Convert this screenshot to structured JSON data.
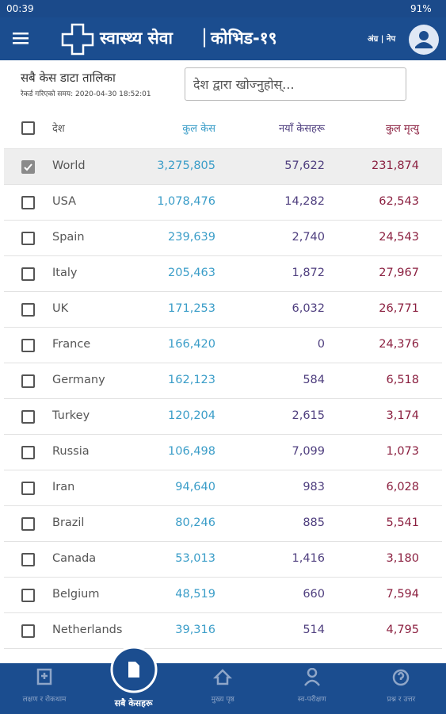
{
  "status_bar": {
    "time": "00:39",
    "battery": "91%"
  },
  "header": {
    "title": "स्वास्थ्य सेवा",
    "subtitle": "कोभिड-१९",
    "language": "अंग्र | नेप"
  },
  "panel": {
    "title": "सबै केस डाटा तालिका",
    "updated": "रेकर्ड गरिएको समय: 2020-04-30 18:52:01",
    "search_placeholder": "देश द्वारा खोज्नुहोस्..."
  },
  "table": {
    "columns": [
      "देश",
      "कुल केस",
      "नयाँ केसहरू",
      "कुल मृत्यु"
    ],
    "rows": [
      {
        "cells": [
          "World",
          "3,275,805",
          "57,622",
          "231,874"
        ],
        "checked": true
      },
      {
        "cells": [
          "USA",
          "1,078,476",
          "14,282",
          "62,543"
        ],
        "checked": false
      },
      {
        "cells": [
          "Spain",
          "239,639",
          "2,740",
          "24,543"
        ],
        "checked": false
      },
      {
        "cells": [
          "Italy",
          "205,463",
          "1,872",
          "27,967"
        ],
        "checked": false
      },
      {
        "cells": [
          "UK",
          "171,253",
          "6,032",
          "26,771"
        ],
        "checked": false
      },
      {
        "cells": [
          "France",
          "166,420",
          "0",
          "24,376"
        ],
        "checked": false
      },
      {
        "cells": [
          "Germany",
          "162,123",
          "584",
          "6,518"
        ],
        "checked": false
      },
      {
        "cells": [
          "Turkey",
          "120,204",
          "2,615",
          "3,174"
        ],
        "checked": false
      },
      {
        "cells": [
          "Russia",
          "106,498",
          "7,099",
          "1,073"
        ],
        "checked": false
      },
      {
        "cells": [
          "Iran",
          "94,640",
          "983",
          "6,028"
        ],
        "checked": false
      },
      {
        "cells": [
          "Brazil",
          "80,246",
          "885",
          "5,541"
        ],
        "checked": false
      },
      {
        "cells": [
          "Canada",
          "53,013",
          "1,416",
          "3,180"
        ],
        "checked": false
      },
      {
        "cells": [
          "Belgium",
          "48,519",
          "660",
          "7,594"
        ],
        "checked": false
      },
      {
        "cells": [
          "Netherlands",
          "39,316",
          "514",
          "4,795"
        ],
        "checked": false
      }
    ]
  },
  "bottom_nav": {
    "items": [
      "लक्षण र रोकथाम",
      "सबै केसहरू",
      "मुख्य पृष्ठ",
      "स्व-परीक्षण",
      "प्रश्न र उत्तर"
    ],
    "active": 1
  }
}
